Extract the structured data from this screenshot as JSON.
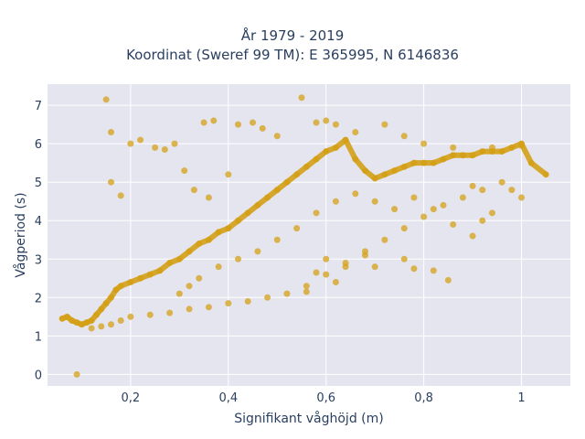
{
  "chart_data": {
    "type": "scatter",
    "title": "År 1979 - 2019",
    "subtitle": "Koordinat (Sweref 99 TM): E 365995, N 6146836",
    "xlabel": "Signifikant våghöjd (m)",
    "ylabel": "Vågperiod (s)",
    "xlim": [
      0.03,
      1.1
    ],
    "ylim": [
      -0.3,
      7.55
    ],
    "x_ticks": [
      0.2,
      0.4,
      0.6,
      0.8,
      1.0
    ],
    "x_tick_labels": [
      "0,2",
      "0,4",
      "0,6",
      "0,8",
      "1"
    ],
    "y_ticks": [
      0,
      1,
      2,
      3,
      4,
      5,
      6,
      7
    ],
    "y_tick_labels": [
      "0",
      "1",
      "2",
      "3",
      "4",
      "5",
      "6",
      "7"
    ],
    "grid": true,
    "legend": "none",
    "colors": {
      "marker": "#d4a017",
      "plot_bg": "#e5e5ef",
      "grid": "#ffffff",
      "text": "#2a3f5f"
    },
    "series": [
      {
        "points": [
          [
            0.06,
            1.45
          ],
          [
            0.07,
            1.5
          ],
          [
            0.08,
            1.4
          ],
          [
            0.09,
            1.35
          ],
          [
            0.1,
            1.3
          ],
          [
            0.11,
            1.35
          ],
          [
            0.12,
            1.4
          ],
          [
            0.13,
            1.55
          ],
          [
            0.14,
            1.7
          ],
          [
            0.15,
            1.85
          ],
          [
            0.16,
            2.0
          ],
          [
            0.17,
            2.2
          ],
          [
            0.18,
            2.3
          ],
          [
            0.2,
            2.4
          ],
          [
            0.22,
            2.5
          ],
          [
            0.24,
            2.6
          ],
          [
            0.26,
            2.7
          ],
          [
            0.28,
            2.9
          ],
          [
            0.3,
            3.0
          ],
          [
            0.32,
            3.2
          ],
          [
            0.34,
            3.4
          ],
          [
            0.36,
            3.5
          ],
          [
            0.38,
            3.7
          ],
          [
            0.4,
            3.8
          ],
          [
            0.42,
            4.0
          ],
          [
            0.44,
            4.2
          ],
          [
            0.46,
            4.4
          ],
          [
            0.48,
            4.6
          ],
          [
            0.5,
            4.8
          ],
          [
            0.52,
            5.0
          ],
          [
            0.54,
            5.2
          ],
          [
            0.56,
            5.4
          ],
          [
            0.58,
            5.6
          ],
          [
            0.6,
            5.8
          ],
          [
            0.62,
            5.9
          ],
          [
            0.64,
            6.1
          ],
          [
            0.66,
            5.6
          ],
          [
            0.68,
            5.3
          ],
          [
            0.7,
            5.1
          ],
          [
            0.72,
            5.2
          ],
          [
            0.74,
            5.3
          ],
          [
            0.76,
            5.4
          ],
          [
            0.78,
            5.5
          ],
          [
            0.8,
            5.5
          ],
          [
            0.82,
            5.5
          ],
          [
            0.84,
            5.6
          ],
          [
            0.86,
            5.7
          ],
          [
            0.88,
            5.7
          ],
          [
            0.9,
            5.7
          ],
          [
            0.92,
            5.8
          ],
          [
            0.94,
            5.8
          ],
          [
            0.96,
            5.8
          ],
          [
            0.98,
            5.9
          ],
          [
            1.0,
            6.0
          ],
          [
            1.02,
            5.5
          ],
          [
            1.05,
            5.2
          ],
          [
            0.15,
            7.15
          ],
          [
            0.09,
            0.0
          ],
          [
            0.55,
            7.2
          ],
          [
            0.16,
            6.3
          ],
          [
            0.2,
            6.0
          ],
          [
            0.22,
            6.1
          ],
          [
            0.29,
            6.0
          ],
          [
            0.35,
            6.55
          ],
          [
            0.37,
            6.6
          ],
          [
            0.27,
            5.85
          ],
          [
            0.25,
            5.9
          ],
          [
            0.18,
            4.65
          ],
          [
            0.16,
            5.0
          ],
          [
            0.85,
            2.45
          ],
          [
            0.82,
            2.7
          ],
          [
            0.56,
            2.15
          ],
          [
            0.62,
            2.4
          ],
          [
            0.58,
            2.65
          ],
          [
            0.7,
            2.8
          ],
          [
            0.78,
            2.75
          ],
          [
            0.76,
            3.0
          ],
          [
            0.6,
            3.0
          ],
          [
            0.64,
            2.9
          ],
          [
            0.68,
            3.1
          ],
          [
            0.42,
            6.5
          ],
          [
            0.45,
            6.55
          ],
          [
            0.5,
            6.2
          ],
          [
            0.47,
            6.4
          ],
          [
            0.4,
            5.2
          ],
          [
            0.33,
            4.8
          ],
          [
            0.31,
            5.3
          ],
          [
            0.36,
            4.6
          ],
          [
            0.12,
            1.2
          ],
          [
            0.14,
            1.25
          ],
          [
            0.16,
            1.3
          ],
          [
            0.18,
            1.4
          ],
          [
            0.2,
            1.5
          ],
          [
            0.24,
            1.55
          ],
          [
            0.28,
            1.6
          ],
          [
            0.32,
            1.7
          ],
          [
            0.36,
            1.75
          ],
          [
            0.4,
            1.85
          ],
          [
            0.44,
            1.9
          ],
          [
            0.48,
            2.0
          ],
          [
            0.52,
            2.1
          ],
          [
            0.56,
            2.3
          ],
          [
            0.6,
            2.6
          ],
          [
            0.64,
            2.8
          ],
          [
            0.68,
            3.2
          ],
          [
            0.72,
            3.5
          ],
          [
            0.76,
            3.8
          ],
          [
            0.8,
            4.1
          ],
          [
            0.84,
            4.4
          ],
          [
            0.88,
            4.6
          ],
          [
            0.92,
            4.8
          ],
          [
            0.96,
            5.0
          ],
          [
            1.0,
            4.6
          ],
          [
            0.98,
            4.8
          ],
          [
            0.94,
            4.2
          ],
          [
            0.92,
            4.0
          ],
          [
            0.9,
            3.6
          ],
          [
            0.86,
            3.9
          ],
          [
            0.82,
            4.3
          ],
          [
            0.9,
            4.9
          ],
          [
            0.3,
            2.1
          ],
          [
            0.32,
            2.3
          ],
          [
            0.34,
            2.5
          ],
          [
            0.38,
            2.8
          ],
          [
            0.42,
            3.0
          ],
          [
            0.46,
            3.2
          ],
          [
            0.5,
            3.5
          ],
          [
            0.54,
            3.8
          ],
          [
            0.58,
            4.2
          ],
          [
            0.62,
            4.5
          ],
          [
            0.66,
            4.7
          ],
          [
            0.7,
            4.5
          ],
          [
            0.74,
            4.3
          ],
          [
            0.78,
            4.6
          ],
          [
            0.62,
            6.5
          ],
          [
            0.58,
            6.55
          ],
          [
            0.6,
            6.6
          ],
          [
            0.66,
            6.3
          ],
          [
            0.72,
            6.5
          ],
          [
            0.76,
            6.2
          ],
          [
            0.8,
            6.0
          ],
          [
            0.86,
            5.9
          ],
          [
            0.94,
            5.9
          ],
          [
            1.0,
            5.95
          ]
        ]
      }
    ]
  }
}
